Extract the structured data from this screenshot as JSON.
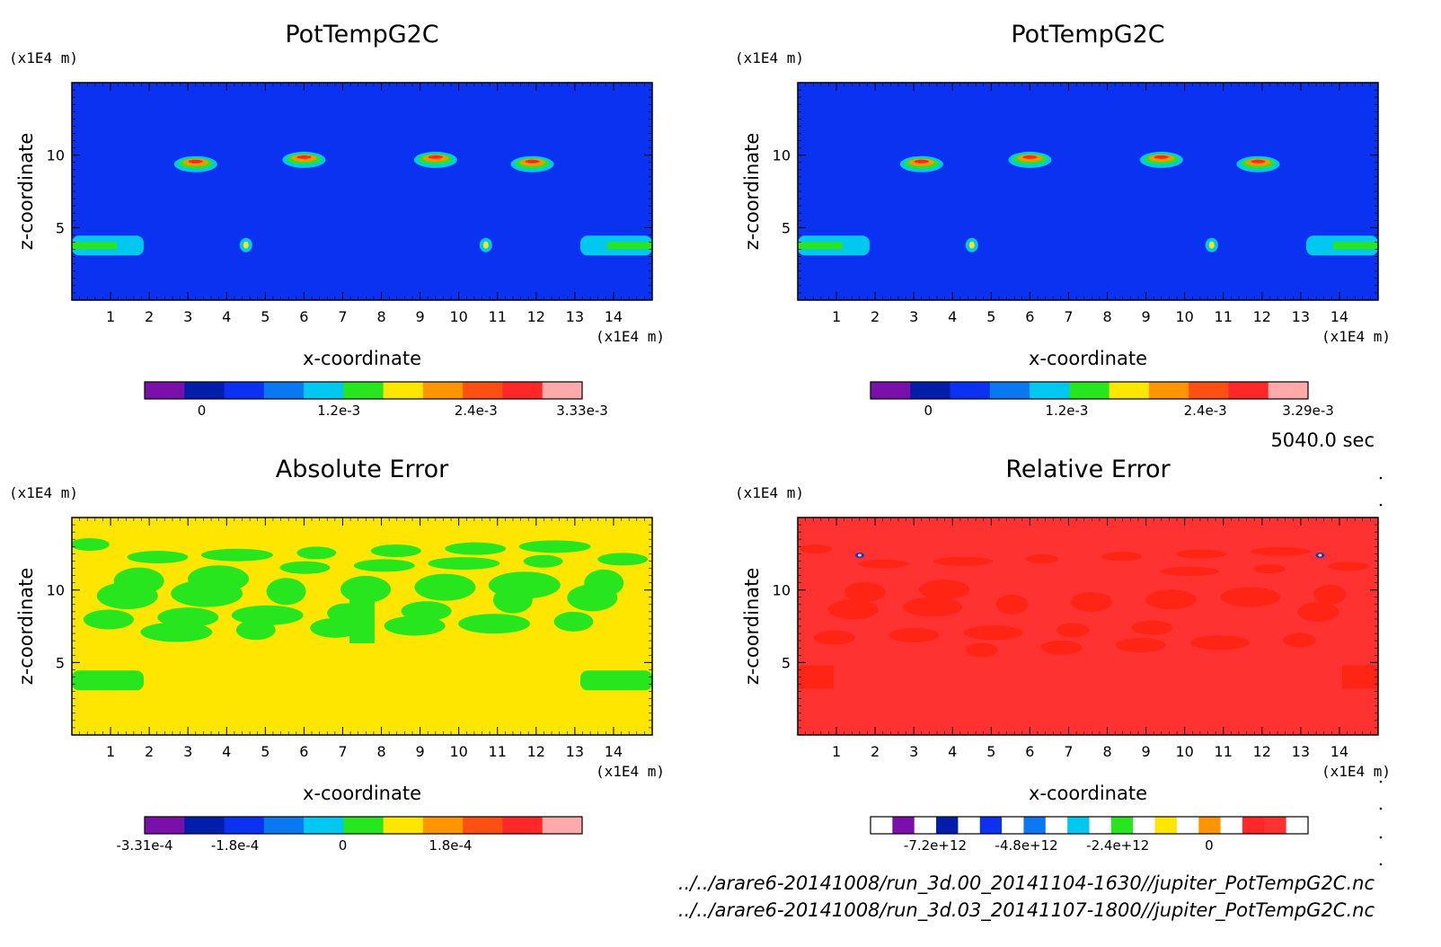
{
  "time_label": "5040.0 sec",
  "files": [
    "../../arare6-20141008/run_3d.00_20141104-1630//jupiter_PotTempG2C.nc",
    "../../arare6-20141008/run_3d.03_20141107-1800//jupiter_PotTempG2C.nc"
  ],
  "chart_data": [
    {
      "type": "heatmap",
      "title": "PotTempG2C",
      "xlabel": "x-coordinate",
      "ylabel": "z-coordinate",
      "x_unit": "(x1E4 m)",
      "y_unit": "(x1E4 m)",
      "xlim": [
        0,
        15
      ],
      "ylim": [
        0,
        15
      ],
      "x_ticks": [
        "1",
        "2",
        "3",
        "4",
        "5",
        "6",
        "7",
        "8",
        "9",
        "10",
        "11",
        "12",
        "13",
        "14"
      ],
      "y_ticks": [
        "5",
        "10"
      ],
      "background": "#0a32f0",
      "features": [
        {
          "kind": "warm-bubble",
          "x": 3.2,
          "z": 9.5
        },
        {
          "kind": "warm-bubble",
          "x": 6.0,
          "z": 9.8
        },
        {
          "kind": "warm-bubble",
          "x": 9.4,
          "z": 9.8
        },
        {
          "kind": "warm-bubble",
          "x": 11.9,
          "z": 9.5
        },
        {
          "kind": "small-blob",
          "x": 4.5,
          "z": 3.8
        },
        {
          "kind": "small-blob",
          "x": 10.7,
          "z": 3.8
        },
        {
          "kind": "edge-band",
          "x": 0.5,
          "z": 3.7
        },
        {
          "kind": "edge-band",
          "x": 14.4,
          "z": 3.7
        }
      ],
      "colorbar": {
        "colors": [
          "#7a0faa",
          "#001eaa",
          "#0a32f0",
          "#0a78f0",
          "#00c8f0",
          "#28e61e",
          "#ffe600",
          "#ff9600",
          "#ff5014",
          "#ff2828",
          "#ffaaaa"
        ],
        "tick_labels": [
          "0",
          "1.2e-3",
          "2.4e-3",
          "3.33e-3"
        ],
        "tick_values": [
          0,
          0.0012,
          0.0024,
          0.00333
        ],
        "range": [
          -0.0005,
          0.00333
        ]
      }
    },
    {
      "type": "heatmap",
      "title": "PotTempG2C",
      "xlabel": "x-coordinate",
      "ylabel": "z-coordinate",
      "x_unit": "(x1E4 m)",
      "y_unit": "(x1E4 m)",
      "xlim": [
        0,
        15
      ],
      "ylim": [
        0,
        15
      ],
      "x_ticks": [
        "1",
        "2",
        "3",
        "4",
        "5",
        "6",
        "7",
        "8",
        "9",
        "10",
        "11",
        "12",
        "13",
        "14"
      ],
      "y_ticks": [
        "5",
        "10"
      ],
      "background": "#0a32f0",
      "features": [
        {
          "kind": "warm-bubble",
          "x": 3.2,
          "z": 9.5
        },
        {
          "kind": "warm-bubble",
          "x": 6.0,
          "z": 9.8
        },
        {
          "kind": "warm-bubble",
          "x": 9.4,
          "z": 9.8
        },
        {
          "kind": "warm-bubble",
          "x": 11.9,
          "z": 9.5
        },
        {
          "kind": "small-blob",
          "x": 4.5,
          "z": 3.8
        },
        {
          "kind": "small-blob",
          "x": 10.7,
          "z": 3.8
        },
        {
          "kind": "edge-band",
          "x": 0.5,
          "z": 3.7
        },
        {
          "kind": "edge-band",
          "x": 14.4,
          "z": 3.7
        }
      ],
      "colorbar": {
        "colors": [
          "#7a0faa",
          "#001eaa",
          "#0a32f0",
          "#0a78f0",
          "#00c8f0",
          "#28e61e",
          "#ffe600",
          "#ff9600",
          "#ff5014",
          "#ff2828",
          "#ffaaaa"
        ],
        "tick_labels": [
          "0",
          "1.2e-3",
          "2.4e-3",
          "3.29e-3"
        ],
        "tick_values": [
          0,
          0.0012,
          0.0024,
          0.00329
        ],
        "range": [
          -0.0005,
          0.00329
        ]
      }
    },
    {
      "type": "heatmap",
      "title": "Absolute Error",
      "xlabel": "x-coordinate",
      "ylabel": "z-coordinate",
      "x_unit": "(x1E4 m)",
      "y_unit": "(x1E4 m)",
      "xlim": [
        0,
        15
      ],
      "ylim": [
        0,
        15
      ],
      "x_ticks": [
        "1",
        "2",
        "3",
        "4",
        "5",
        "6",
        "7",
        "8",
        "9",
        "10",
        "11",
        "12",
        "13",
        "14"
      ],
      "y_ticks": [
        "5",
        "10"
      ],
      "background": "#ffe600",
      "features": [
        {
          "kind": "green-patches",
          "x": 7.5,
          "z": 10.5
        },
        {
          "kind": "edge-band",
          "x": 0.7,
          "z": 3.7
        },
        {
          "kind": "edge-band",
          "x": 14.2,
          "z": 3.7
        }
      ],
      "colorbar": {
        "colors": [
          "#7a0faa",
          "#001eaa",
          "#0a32f0",
          "#0a78f0",
          "#00c8f0",
          "#28e61e",
          "#ffe600",
          "#ff9600",
          "#ff5014",
          "#ff2828",
          "#ffaaaa"
        ],
        "tick_labels": [
          "-3.31e-4",
          "-1.8e-4",
          "0",
          "1.8e-4"
        ],
        "tick_values": [
          -0.000331,
          -0.00018,
          0,
          0.00018
        ],
        "range": [
          -0.000331,
          0.0004
        ]
      }
    },
    {
      "type": "heatmap",
      "title": "Relative Error",
      "xlabel": "x-coordinate",
      "ylabel": "z-coordinate",
      "x_unit": "(x1E4 m)",
      "y_unit": "(x1E4 m)",
      "xlim": [
        0,
        15
      ],
      "ylim": [
        0,
        15
      ],
      "x_ticks": [
        "1",
        "2",
        "3",
        "4",
        "5",
        "6",
        "7",
        "8",
        "9",
        "10",
        "11",
        "12",
        "13",
        "14"
      ],
      "y_ticks": [
        "5",
        "10"
      ],
      "background": "#ff3232",
      "features": [
        {
          "kind": "dark-red-patches",
          "x": 7.5,
          "z": 9.0
        },
        {
          "kind": "small-blob",
          "x": 1.6,
          "z": 12.4
        },
        {
          "kind": "small-blob",
          "x": 13.5,
          "z": 12.4
        }
      ],
      "colorbar": {
        "colors": [
          "#ffffff",
          "#7a0faa",
          "#ffffff",
          "#001eaa",
          "#ffffff",
          "#0a32f0",
          "#ffffff",
          "#0a78f0",
          "#ffffff",
          "#00c8f0",
          "#ffffff",
          "#28e61e",
          "#ffffff",
          "#ffe600",
          "#ffffff",
          "#ff9600",
          "#ffffff",
          "#ff2828",
          "#ff3232",
          "#ffffff"
        ],
        "tick_labels": [
          "-7.2e+12",
          "-4.8e+12",
          "-2.4e+12",
          "0"
        ],
        "tick_values": [
          -7200000000000.0,
          -4800000000000.0,
          -2400000000000.0,
          0
        ],
        "range": [
          -8900000000000.0,
          2600000000000.0
        ]
      }
    }
  ]
}
